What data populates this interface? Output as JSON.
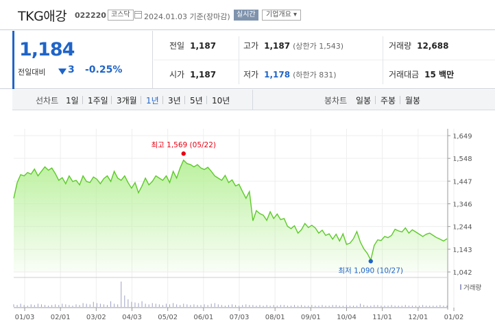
{
  "header": {
    "stock_name": "TKG애강",
    "stock_code": "022220",
    "market": "코스닥",
    "date_text": "2024.01.03  기준(장마감)",
    "realtime_label": "실시간",
    "company_overview": "기업개요 ▾"
  },
  "quote": {
    "price": "1,184",
    "change_label": "전일대비",
    "change": "3",
    "change_pct": "-0.25%",
    "prev_close_label": "전일",
    "prev_close": "1,187",
    "open_label": "시가",
    "open": "1,187",
    "high_label": "고가",
    "high": "1,187",
    "upper_limit": "(상한가 1,543)",
    "low_label": "저가",
    "low": "1,178",
    "lower_limit": "(하한가 831)",
    "volume_label": "거래량",
    "volume": "12,688",
    "amount_label": "거래대금",
    "amount": "15 백만"
  },
  "period_bar": {
    "line_chart_label": "선차트",
    "periods": [
      "1일",
      "1주일",
      "3개월",
      "1년",
      "3년",
      "5년",
      "10년"
    ],
    "active_period": "1년",
    "candle_chart_label": "봉차트",
    "candle_periods": [
      "일봉",
      "주봉",
      "월봉"
    ]
  },
  "colors": {
    "accent_blue": "#1f64c8",
    "line_green": "#5cc928",
    "fill_green": "#b8f09a",
    "high_marker": "#e60012",
    "low_marker": "#1f64c8"
  },
  "chart_data": {
    "type": "area",
    "y_ticks": [
      "1,649",
      "1,548",
      "1,447",
      "1,346",
      "1,244",
      "1,143",
      "1,042"
    ],
    "ylim": [
      1042,
      1649
    ],
    "x_ticks": [
      "01/03",
      "02/01",
      "03/02",
      "04/03",
      "05/02",
      "06/01",
      "07/03",
      "08/01",
      "09/01",
      "10/04",
      "11/01",
      "12/01",
      "01/02"
    ],
    "series": [
      {
        "values": [
          1370,
          1440,
          1475,
          1470,
          1485,
          1478,
          1500,
          1470,
          1490,
          1510,
          1495,
          1505,
          1480,
          1450,
          1462,
          1435,
          1470,
          1445,
          1450,
          1430,
          1470,
          1445,
          1440,
          1465,
          1455,
          1435,
          1458,
          1470,
          1445,
          1490,
          1460,
          1450,
          1470,
          1440,
          1415,
          1440,
          1395,
          1425,
          1460,
          1430,
          1445,
          1470,
          1460,
          1450,
          1470,
          1440,
          1490,
          1460,
          1505,
          1540,
          1525,
          1520,
          1510,
          1520,
          1505,
          1498,
          1508,
          1490,
          1470,
          1460,
          1450,
          1472,
          1440,
          1452,
          1425,
          1432,
          1400,
          1370,
          1400,
          1270,
          1315,
          1302,
          1295,
          1272,
          1310,
          1280,
          1300,
          1275,
          1280,
          1245,
          1235,
          1248,
          1215,
          1230,
          1258,
          1240,
          1250,
          1238,
          1215,
          1228,
          1205,
          1212,
          1188,
          1210,
          1180,
          1212,
          1165,
          1170,
          1190,
          1222,
          1175,
          1145,
          1125,
          1095,
          1160,
          1185,
          1182,
          1200,
          1195,
          1205,
          1232,
          1225,
          1220,
          1238,
          1215,
          1230,
          1220,
          1210,
          1200,
          1210,
          1215,
          1205,
          1195,
          1188,
          1180,
          1190
        ]
      }
    ],
    "annotations": [
      {
        "text": "최고 1,569 (05/22)",
        "value": 1569,
        "type": "max"
      },
      {
        "text": "최저 1,090 (10/27)",
        "value": 1090,
        "type": "min"
      }
    ],
    "volume_label": "거래량",
    "volume_values": [
      4,
      3,
      5,
      3,
      2,
      4,
      3,
      5,
      4,
      3,
      2,
      3,
      4,
      3,
      5,
      4,
      3,
      2,
      4,
      3,
      6,
      5,
      4,
      8,
      6,
      5,
      4,
      3,
      9,
      5,
      4,
      40,
      18,
      12,
      8,
      7,
      6,
      9,
      5,
      4,
      6,
      5,
      4,
      3,
      5,
      4,
      6,
      4,
      3,
      5,
      4,
      3,
      4,
      3,
      3,
      4,
      3,
      5,
      6,
      4,
      3,
      2,
      3,
      4,
      3,
      2,
      3,
      4,
      3,
      3,
      2,
      3,
      2,
      3,
      2,
      3,
      2,
      3,
      3,
      2,
      2,
      3,
      2,
      3,
      2,
      2,
      3,
      2,
      2,
      3,
      2,
      2,
      3,
      3,
      2,
      2,
      3,
      2,
      2,
      2,
      5,
      3,
      2,
      2,
      3,
      3,
      2,
      2,
      2,
      3,
      2,
      2,
      2,
      3,
      2,
      2,
      2,
      2,
      3,
      2,
      2,
      2,
      2,
      3,
      2,
      2
    ],
    "grid": true
  }
}
